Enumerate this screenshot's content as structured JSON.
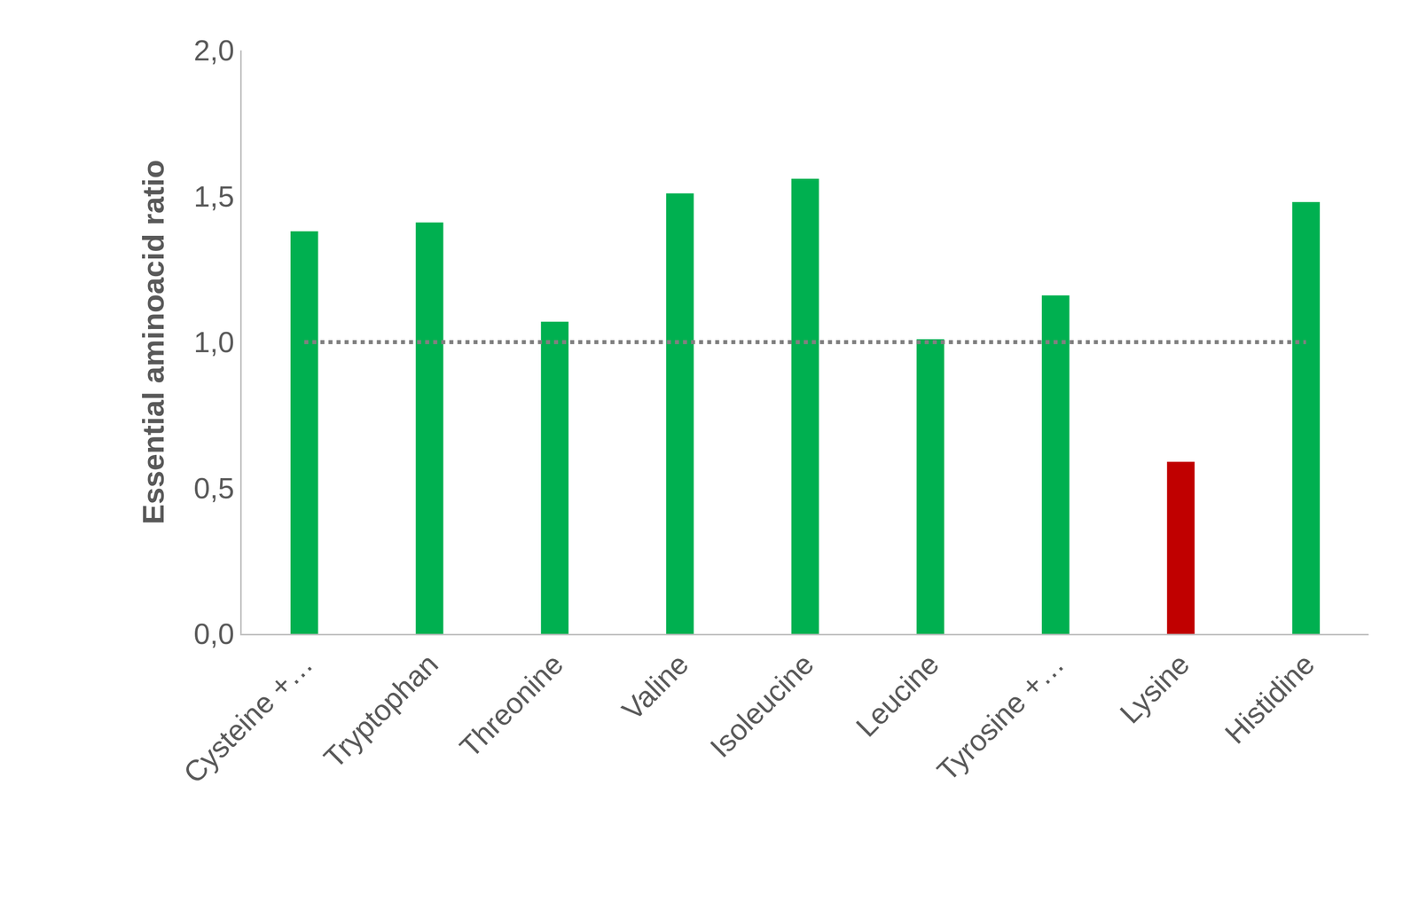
{
  "chart_data": {
    "type": "bar",
    "y_label": "Essential aminoacid ratio",
    "categories": [
      "Cysteine +…",
      "Tryptophan",
      "Threonine",
      "Valine",
      "Isoleucine",
      "Leucine",
      "Tyrosine +…",
      "Lysine",
      "Histidine"
    ],
    "values": [
      1.38,
      1.41,
      1.07,
      1.51,
      1.56,
      1.01,
      1.16,
      0.59,
      1.48
    ],
    "colors": [
      "#00b050",
      "#00b050",
      "#00b050",
      "#00b050",
      "#00b050",
      "#00b050",
      "#00b050",
      "#c00000",
      "#00b050"
    ],
    "reference_line": 1.0,
    "ylim": [
      0,
      2
    ],
    "yticks": [
      {
        "value": 0,
        "label": "0,0"
      },
      {
        "value": 0.5,
        "label": "0,5"
      },
      {
        "value": 1,
        "label": "1,0"
      },
      {
        "value": 1.5,
        "label": "1,5"
      },
      {
        "value": 2,
        "label": "2,0"
      }
    ],
    "grid": false
  }
}
